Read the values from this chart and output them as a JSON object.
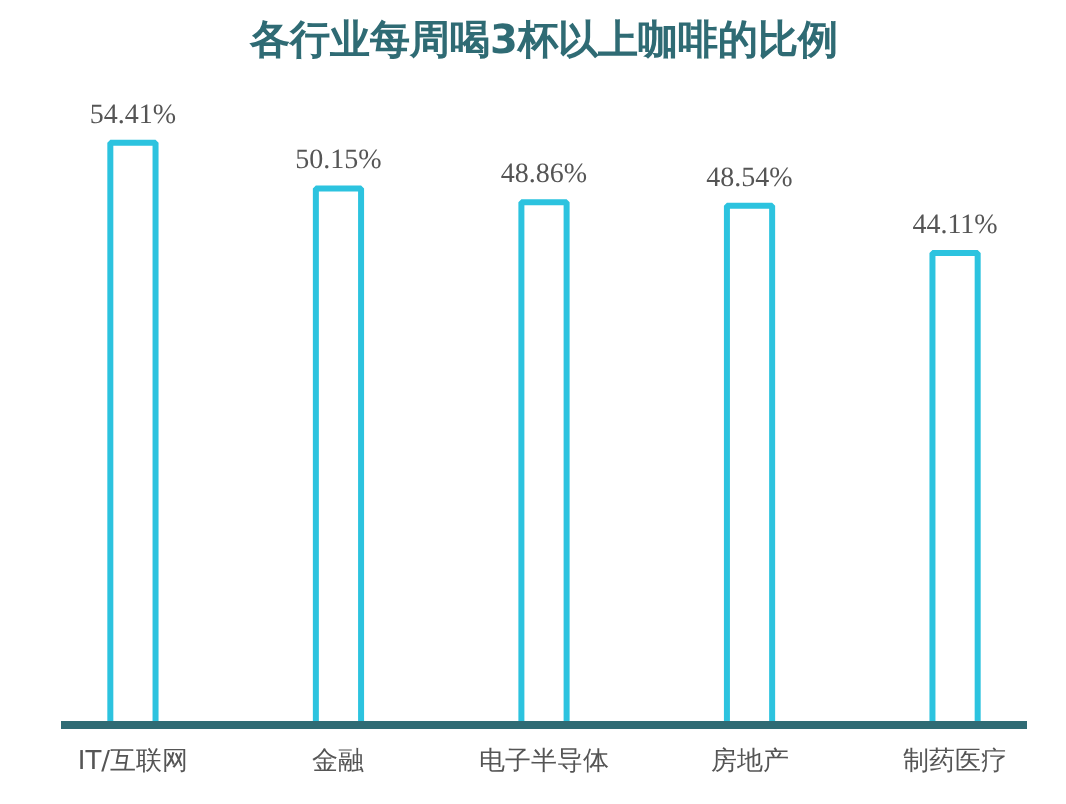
{
  "chart_data": {
    "type": "bar",
    "title": "各行业每周喝3杯以上咖啡的比例",
    "categories": [
      "IT/互联网",
      "金融",
      "电子半导体",
      "房地产",
      "制药医疗"
    ],
    "values": [
      54.41,
      50.15,
      48.86,
      48.54,
      44.11
    ],
    "value_labels": [
      "54.41%",
      "50.15%",
      "48.86%",
      "48.54%",
      "44.11%"
    ],
    "color": "#2cc3df",
    "grid": false
  }
}
